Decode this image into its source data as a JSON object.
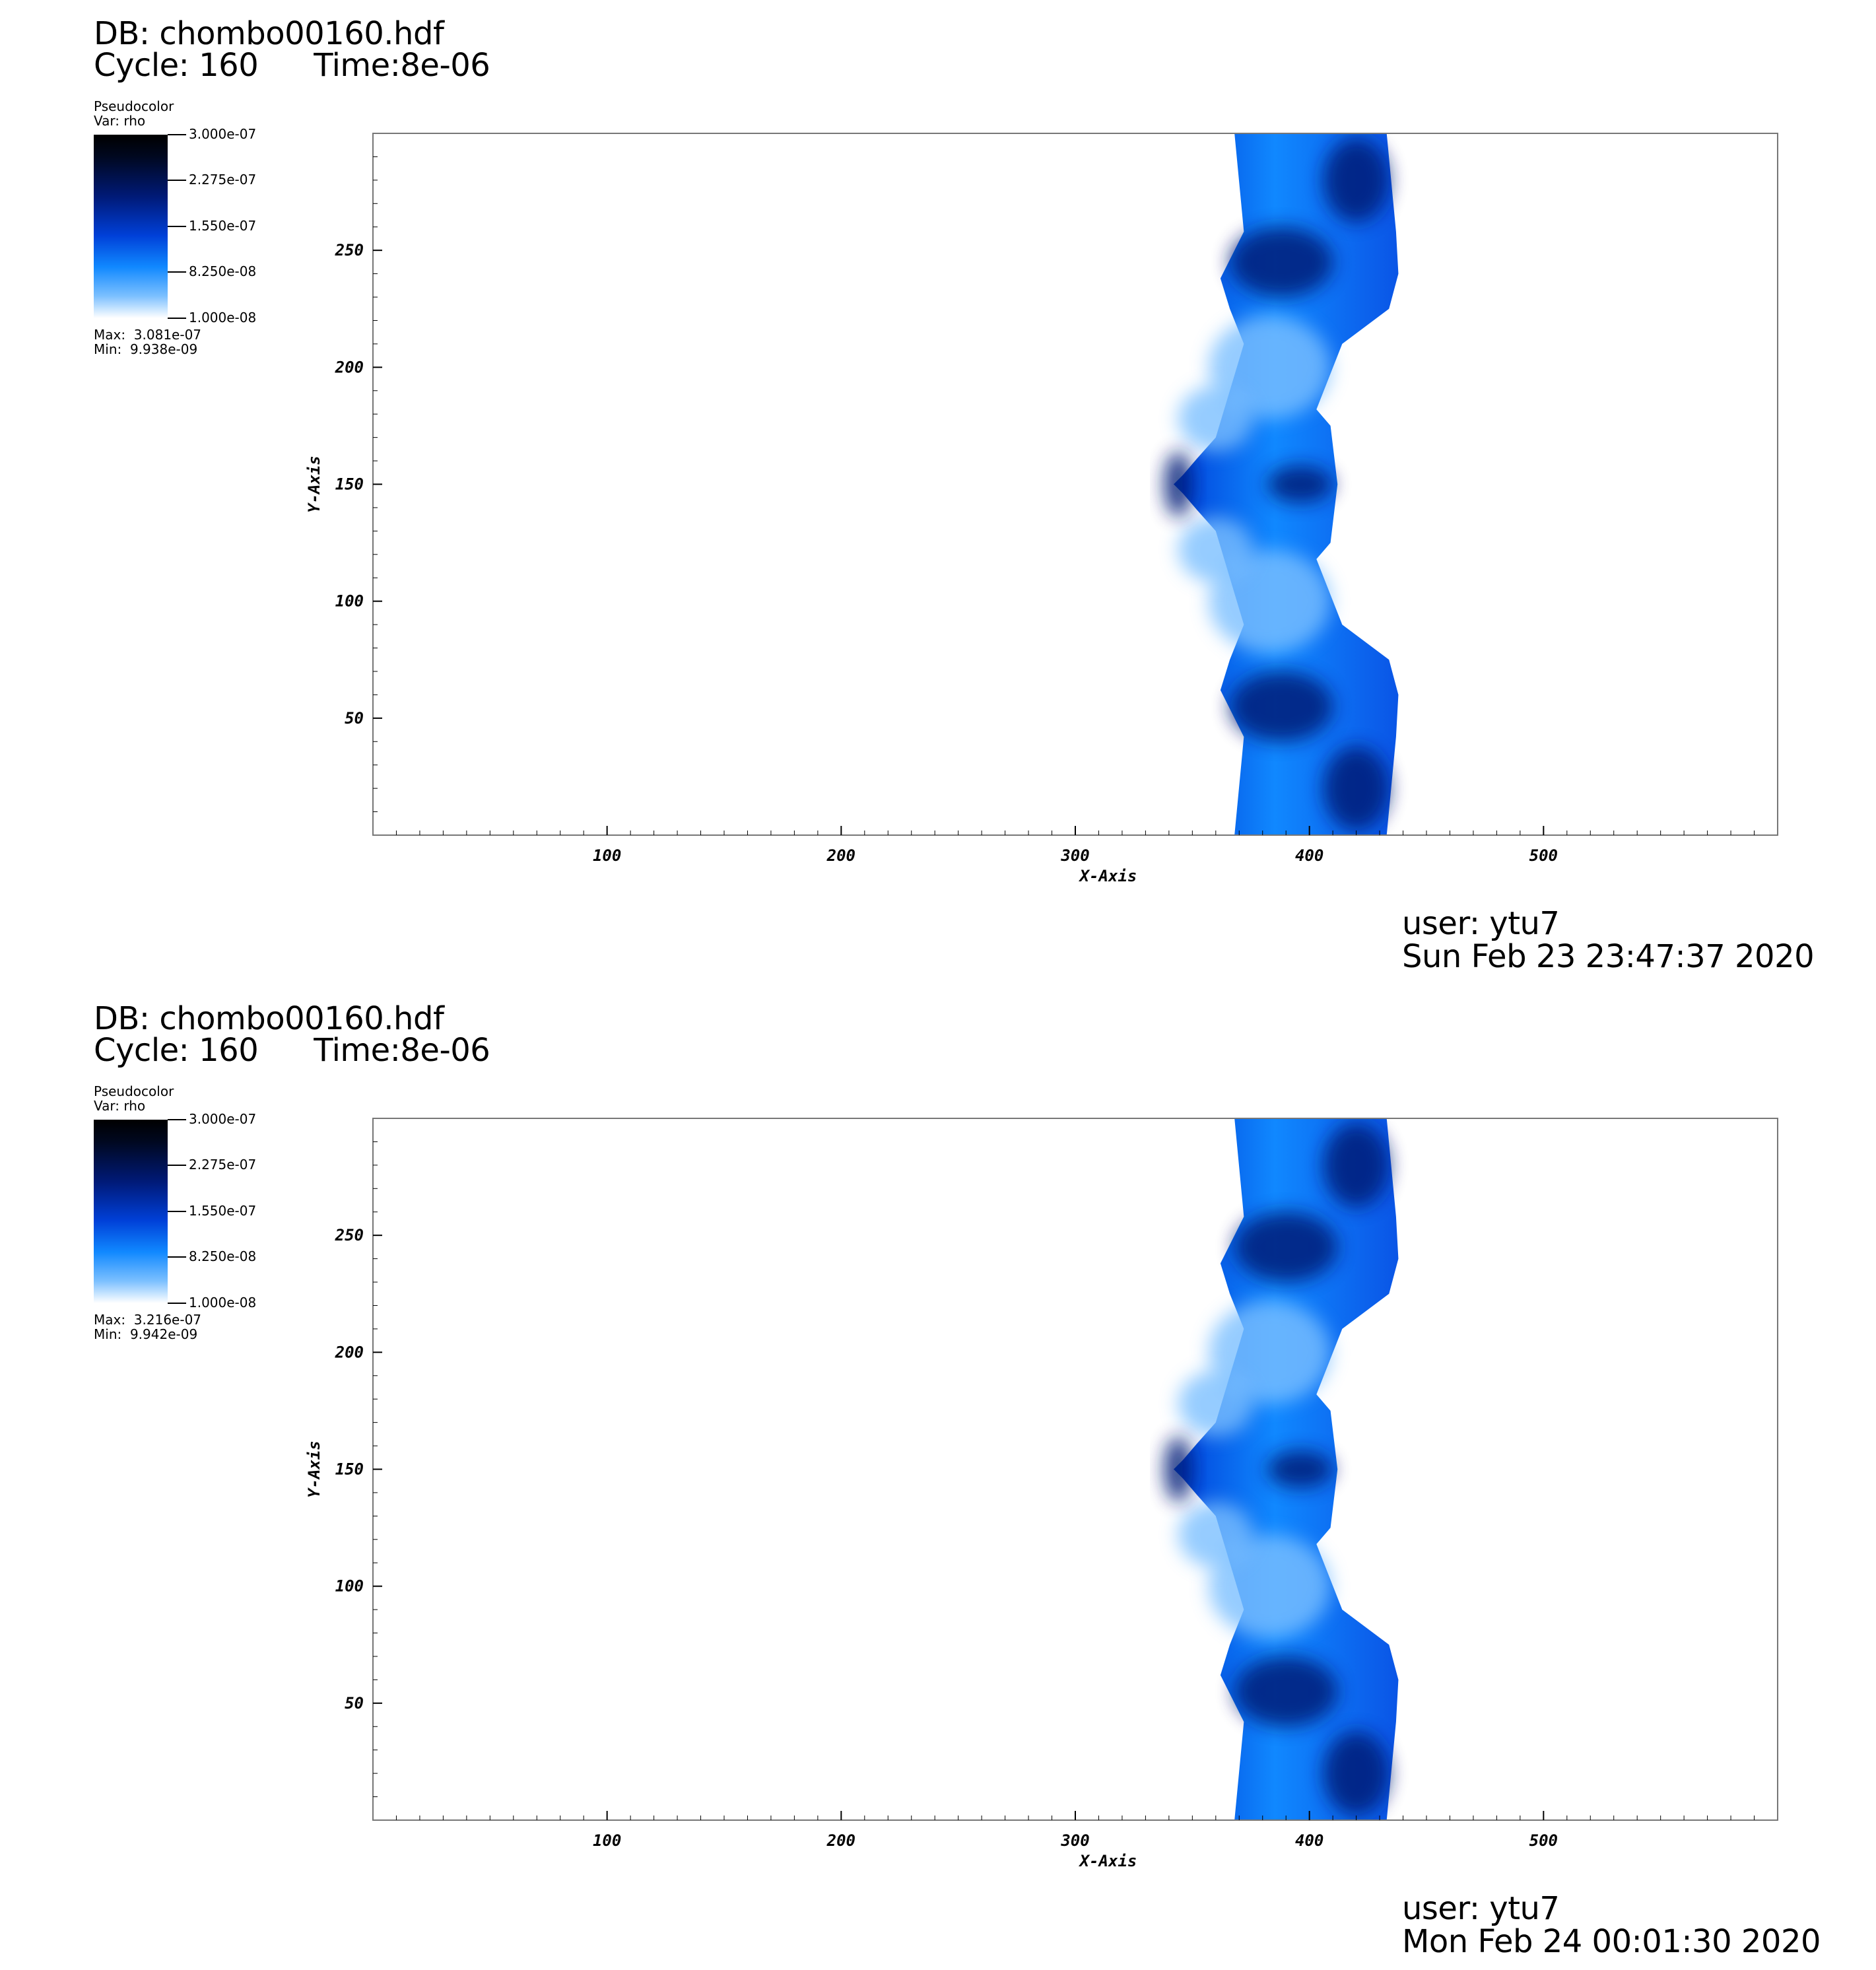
{
  "colors": {
    "colormap": [
      "#ffffff",
      "#7cc0ff",
      "#1088ff",
      "#0040d8",
      "#001a78",
      "#000820",
      "#000000"
    ],
    "fluid": "#0a55e6"
  },
  "panels": [
    {
      "db_line": "DB: chombo00160.hdf",
      "cycle_text": "Cycle: 160",
      "time_text": "Time:8e-06",
      "legend": {
        "plot_type": "Pseudocolor",
        "var_text": "Var: rho",
        "ticks": [
          "3.000e-07",
          "2.275e-07",
          "1.550e-07",
          "8.250e-08",
          "1.000e-08"
        ],
        "max_text": "Max:  3.081e-07",
        "min_text": "Min:  9.938e-09"
      },
      "user": "user: ytu7",
      "date": "Sun Feb 23 23:47:37 2020"
    },
    {
      "db_line": "DB: chombo00160.hdf",
      "cycle_text": "Cycle: 160",
      "time_text": "Time:8e-06",
      "legend": {
        "plot_type": "Pseudocolor",
        "var_text": "Var: rho",
        "ticks": [
          "3.000e-07",
          "2.275e-07",
          "1.550e-07",
          "8.250e-08",
          "1.000e-08"
        ],
        "max_text": "Max:  3.216e-07",
        "min_text": "Min:  9.942e-09"
      },
      "user": "user: ytu7",
      "date": "Mon Feb 24 00:01:30 2020"
    }
  ],
  "chart_data": [
    {
      "type": "heatmap",
      "variable": "rho",
      "xlabel": "X-Axis",
      "ylabel": "Y-Axis",
      "xlim": [
        0,
        600
      ],
      "ylim": [
        0,
        300
      ],
      "x_ticks": [
        100,
        200,
        300,
        400,
        500
      ],
      "y_ticks": [
        50,
        100,
        150,
        200,
        250
      ],
      "value_range": [
        1e-08,
        3e-07
      ],
      "max": 3.081e-07,
      "min": 9.938e-09,
      "boundary": [
        [
          368,
          0
        ],
        [
          372,
          42
        ],
        [
          362,
          62
        ],
        [
          366,
          75
        ],
        [
          372,
          90
        ],
        [
          360,
          130
        ],
        [
          352,
          139
        ],
        [
          346,
          146
        ],
        [
          342,
          150
        ],
        [
          346,
          154
        ],
        [
          352,
          161
        ],
        [
          360,
          170
        ],
        [
          372,
          210
        ],
        [
          366,
          225
        ],
        [
          362,
          238
        ],
        [
          372,
          258
        ],
        [
          368,
          300
        ],
        [
          433,
          300
        ],
        [
          437,
          258
        ],
        [
          438,
          240
        ],
        [
          434,
          225
        ],
        [
          414,
          210
        ],
        [
          403,
          182
        ],
        [
          409,
          175
        ],
        [
          412,
          150
        ],
        [
          409,
          125
        ],
        [
          403,
          118
        ],
        [
          414,
          90
        ],
        [
          434,
          75
        ],
        [
          438,
          60
        ],
        [
          437,
          42
        ],
        [
          433,
          0
        ]
      ],
      "dark_blobs": [
        [
          388,
          245,
          22,
          15
        ],
        [
          388,
          55,
          22,
          15
        ],
        [
          396,
          150,
          14,
          8
        ],
        [
          344,
          150,
          6,
          14
        ],
        [
          420,
          280,
          14,
          18
        ],
        [
          420,
          20,
          14,
          18
        ]
      ],
      "light_blobs": [
        [
          383,
          200,
          26,
          22
        ],
        [
          383,
          100,
          26,
          22
        ],
        [
          360,
          178,
          16,
          14
        ],
        [
          360,
          122,
          16,
          14
        ]
      ]
    },
    {
      "type": "heatmap",
      "variable": "rho",
      "xlabel": "X-Axis",
      "ylabel": "Y-Axis",
      "xlim": [
        0,
        600
      ],
      "ylim": [
        0,
        300
      ],
      "x_ticks": [
        100,
        200,
        300,
        400,
        500
      ],
      "y_ticks": [
        50,
        100,
        150,
        200,
        250
      ],
      "value_range": [
        1e-08,
        3e-07
      ],
      "max": 3.216e-07,
      "min": 9.942e-09,
      "boundary": [
        [
          368,
          0
        ],
        [
          372,
          42
        ],
        [
          362,
          62
        ],
        [
          366,
          75
        ],
        [
          372,
          90
        ],
        [
          360,
          130
        ],
        [
          352,
          139
        ],
        [
          346,
          146
        ],
        [
          342,
          150
        ],
        [
          346,
          154
        ],
        [
          352,
          161
        ],
        [
          360,
          170
        ],
        [
          372,
          210
        ],
        [
          366,
          225
        ],
        [
          362,
          238
        ],
        [
          372,
          258
        ],
        [
          368,
          300
        ],
        [
          433,
          300
        ],
        [
          437,
          258
        ],
        [
          438,
          240
        ],
        [
          434,
          225
        ],
        [
          414,
          210
        ],
        [
          403,
          182
        ],
        [
          409,
          175
        ],
        [
          412,
          150
        ],
        [
          409,
          125
        ],
        [
          403,
          118
        ],
        [
          414,
          90
        ],
        [
          434,
          75
        ],
        [
          438,
          60
        ],
        [
          437,
          42
        ],
        [
          433,
          0
        ]
      ],
      "dark_blobs": [
        [
          390,
          245,
          22,
          15
        ],
        [
          390,
          55,
          22,
          15
        ],
        [
          396,
          150,
          14,
          8
        ],
        [
          344,
          150,
          6,
          14
        ],
        [
          420,
          280,
          14,
          18
        ],
        [
          420,
          20,
          14,
          18
        ]
      ],
      "light_blobs": [
        [
          383,
          200,
          26,
          22
        ],
        [
          383,
          100,
          26,
          22
        ],
        [
          360,
          178,
          16,
          14
        ],
        [
          360,
          122,
          16,
          14
        ]
      ]
    }
  ]
}
